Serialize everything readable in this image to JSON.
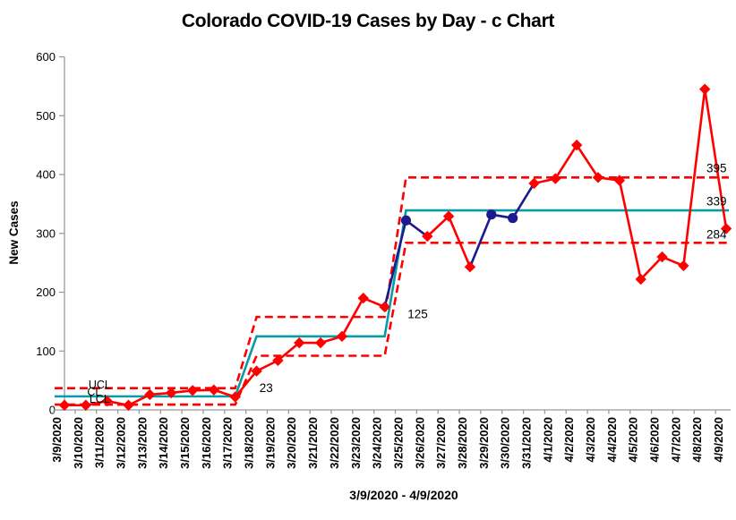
{
  "chart_data": {
    "type": "line",
    "chart_kind": "c control chart with stair-step control limits",
    "title": "Colorado COVID-19 Cases by Day - c Chart",
    "xlabel": "3/9/2020 - 4/9/2020",
    "ylabel": "New Cases",
    "ylim": [
      0,
      600
    ],
    "yticks": [
      0,
      100,
      200,
      300,
      400,
      500,
      600
    ],
    "grid": false,
    "legend": "none",
    "categories": [
      "3/9/2020",
      "3/10/2020",
      "3/11/2020",
      "3/12/2020",
      "3/13/2020",
      "3/14/2020",
      "3/15/2020",
      "3/16/2020",
      "3/17/2020",
      "3/18/2020",
      "3/19/2020",
      "3/20/2020",
      "3/21/2020",
      "3/22/2020",
      "3/23/2020",
      "3/24/2020",
      "3/25/2020",
      "3/26/2020",
      "3/27/2020",
      "3/28/2020",
      "3/29/2020",
      "3/30/2020",
      "3/31/2020",
      "4/1/2020",
      "4/2/2020",
      "4/3/2020",
      "4/4/2020",
      "4/5/2020",
      "4/6/2020",
      "4/7/2020",
      "4/8/2020",
      "4/9/2020"
    ],
    "series": [
      {
        "name": "New Cases",
        "values": [
          8,
          8,
          15,
          8,
          26,
          29,
          33,
          34,
          22,
          66,
          84,
          114,
          114,
          125,
          190,
          175,
          322,
          295,
          329,
          243,
          332,
          326,
          385,
          393,
          450,
          395,
          390,
          222,
          260,
          245,
          545,
          308
        ]
      }
    ],
    "point_styles": [
      "diamond-red",
      "diamond-red",
      "diamond-red",
      "diamond-red",
      "diamond-red",
      "diamond-red",
      "diamond-red",
      "diamond-red",
      "diamond-red",
      "diamond-red",
      "diamond-red",
      "diamond-red",
      "diamond-red",
      "diamond-red",
      "diamond-red",
      "diamond-red",
      "circle-navy",
      "diamond-red",
      "diamond-red",
      "diamond-red",
      "circle-navy",
      "circle-navy",
      "diamond-red",
      "diamond-red",
      "diamond-red",
      "diamond-red",
      "diamond-red",
      "diamond-red",
      "diamond-red",
      "diamond-red",
      "diamond-red",
      "diamond-red"
    ],
    "segment_colors": [
      "red",
      "red",
      "red",
      "red",
      "red",
      "red",
      "red",
      "red",
      "red",
      "red",
      "red",
      "red",
      "red",
      "red",
      "red",
      "navy",
      "navy",
      "red",
      "red",
      "navy",
      "navy",
      "navy",
      "red",
      "red",
      "red",
      "red",
      "red",
      "red",
      "red",
      "red",
      "red"
    ],
    "control_limits": {
      "stages": [
        {
          "dates": "3/9/2020 - 3/17/2020",
          "start_index": 0,
          "end_index": 8,
          "cl": 23,
          "ucl": 37,
          "lcl": 9
        },
        {
          "dates": "3/18/2020 - 3/24/2020",
          "start_index": 9,
          "end_index": 15,
          "cl": 125,
          "ucl": 158,
          "lcl": 92
        },
        {
          "dates": "3/25/2020 - 4/9/2020",
          "start_index": 16,
          "end_index": 31,
          "cl": 339,
          "ucl": 395,
          "lcl": 284
        }
      ]
    },
    "annotations": [
      {
        "text": "UCL",
        "xi": 1.65,
        "yv": 43,
        "size": 12.5,
        "bold": false
      },
      {
        "text": "CL",
        "xi": 1.4,
        "yv": 31,
        "size": 12.5,
        "bold": false
      },
      {
        "text": "LCL",
        "xi": 1.65,
        "yv": 19,
        "size": 12.5,
        "bold": false
      },
      {
        "text": "23",
        "xi": 9.45,
        "yv": 37,
        "size": 13.5,
        "bold": false
      },
      {
        "text": "125",
        "xi": 16.55,
        "yv": 163,
        "size": 13.5,
        "bold": false
      },
      {
        "text": "395",
        "xi": 30.55,
        "yv": 411,
        "size": 13.5,
        "bold": false
      },
      {
        "text": "339",
        "xi": 30.55,
        "yv": 354,
        "size": 13.5,
        "bold": false
      },
      {
        "text": "284",
        "xi": 30.55,
        "yv": 298,
        "size": 13.5,
        "bold": false
      }
    ],
    "colors": {
      "series_red": "#FF0000",
      "stable_navy": "#1B1B8E",
      "center_line_teal": "#089CA4",
      "limit_dashed_red": "#FF0000",
      "axis_gray": "#9B9B9B",
      "text": "#000000",
      "background": "#FFFFFF"
    }
  }
}
